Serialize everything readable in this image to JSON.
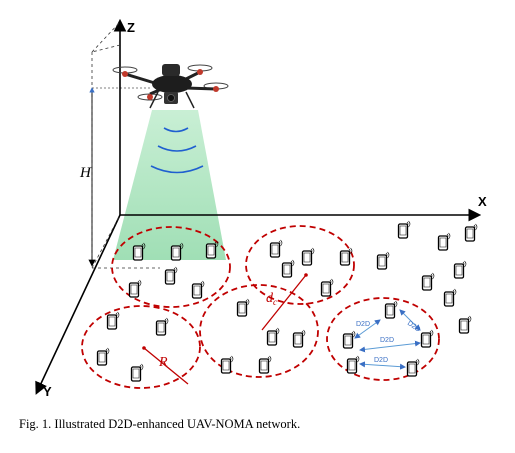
{
  "axes": {
    "z": "Z",
    "x": "X",
    "y": "Y",
    "height": "H"
  },
  "labels": {
    "radius": "R",
    "distance": "d",
    "distance_sub": "c"
  },
  "d2d_links": [
    "D2D",
    "D2D",
    "D2D",
    "D2D"
  ],
  "caption": "Fig. 1.   Illustrated D2D-enhanced UAV-NOMA network.",
  "colors": {
    "cluster_border": "#c00000",
    "beam": "#8fd9a8",
    "signal": "#1f5fd0",
    "link": "#5b9bd5"
  }
}
